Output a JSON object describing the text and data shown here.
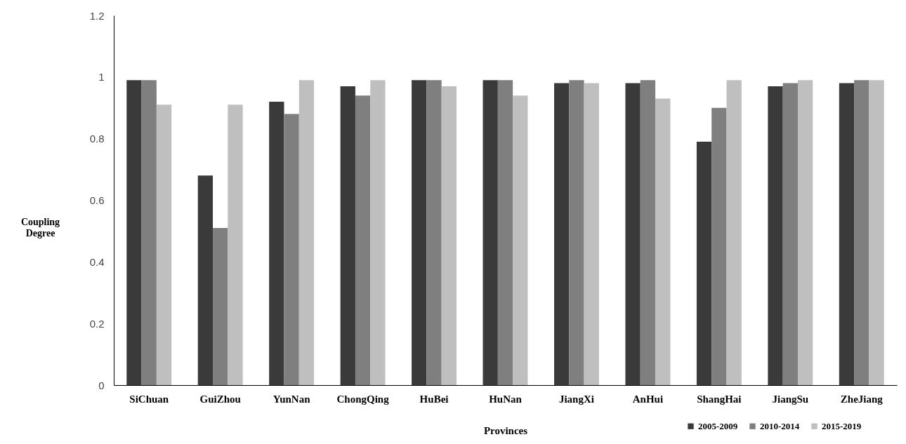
{
  "chart_data": {
    "type": "bar",
    "xlabel": "Provinces",
    "ylabel": "Coupling Degree",
    "categories": [
      "SiChuan",
      "GuiZhou",
      "YunNan",
      "ChongQing",
      "HuBei",
      "HuNan",
      "JiangXi",
      "AnHui",
      "ShangHai",
      "JiangSu",
      "ZheJiang"
    ],
    "series": [
      {
        "name": "2005-2009",
        "color": "#3a3a3a",
        "values": [
          0.99,
          0.68,
          0.92,
          0.97,
          0.99,
          0.99,
          0.98,
          0.98,
          0.79,
          0.97,
          0.98
        ]
      },
      {
        "name": "2010-2014",
        "color": "#7f7f7f",
        "values": [
          0.99,
          0.51,
          0.88,
          0.94,
          0.99,
          0.99,
          0.99,
          0.99,
          0.9,
          0.98,
          0.99
        ]
      },
      {
        "name": "2015-2019",
        "color": "#bfbfbf",
        "values": [
          0.91,
          0.91,
          0.99,
          0.99,
          0.97,
          0.94,
          0.98,
          0.93,
          0.99,
          0.99,
          0.99
        ]
      }
    ],
    "ylim": [
      0,
      1.2
    ],
    "yticks": [
      0,
      0.2,
      0.4,
      0.6,
      0.8,
      1,
      1.2
    ],
    "grid": false,
    "legend": "bottom right"
  }
}
